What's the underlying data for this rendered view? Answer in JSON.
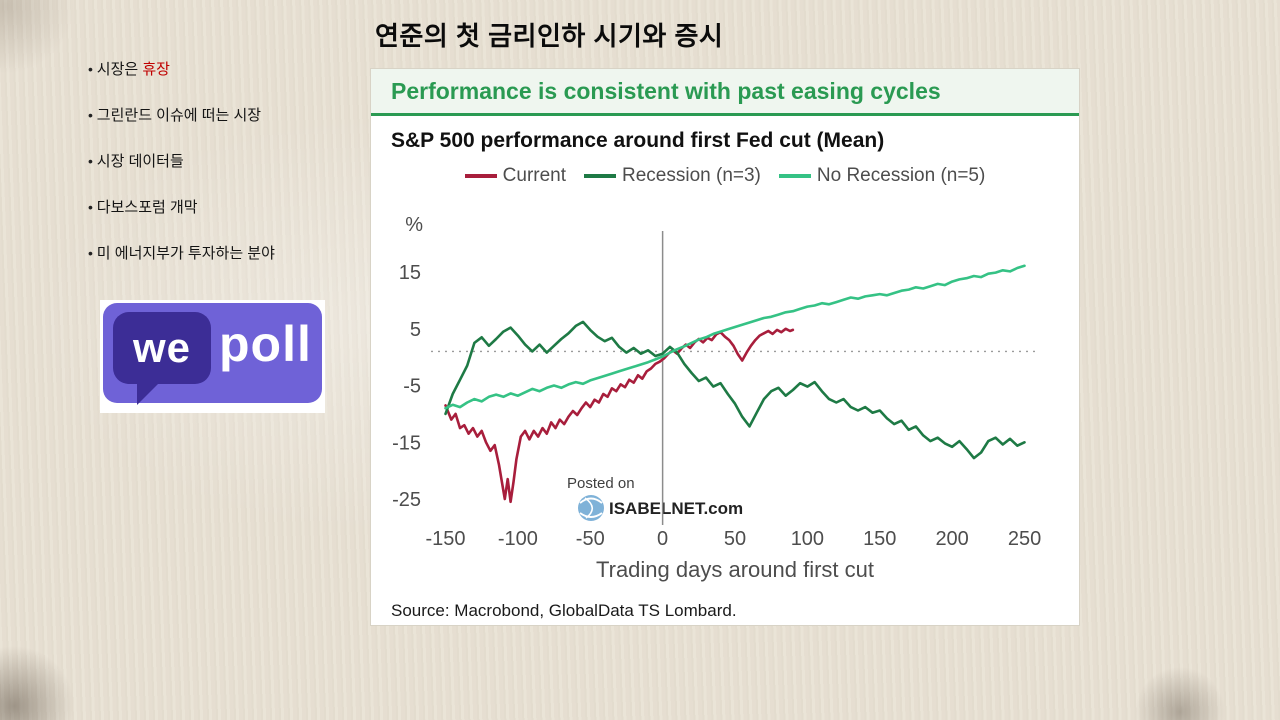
{
  "page": {
    "title": "연준의 첫 금리인하 시기와 증시"
  },
  "sidebar": {
    "items": [
      {
        "text": "시장은 ",
        "highlight": "휴장"
      },
      {
        "text": "그린란드 이슈에 떠는 시장",
        "highlight": ""
      },
      {
        "text": "시장 데이터들",
        "highlight": ""
      },
      {
        "text": "다보스포럼 개막",
        "highlight": ""
      },
      {
        "text": "미 에너지부가 투자하는 분야",
        "highlight": ""
      }
    ]
  },
  "logo": {
    "we": "we",
    "poll": "poll"
  },
  "chart_panel": {
    "header": "Performance is consistent with past easing cycles",
    "watermark_line1": "Posted on",
    "watermark_line2": "ISABELNET.com",
    "source": "Source: Macrobond, GlobalData TS Lombard."
  },
  "colors": {
    "header_green": "#2a9a52",
    "highlight_red": "#c00000",
    "logo_purple": "#6f62d7",
    "logo_dark_purple": "#3c2d96",
    "current_red": "#a81e3c",
    "recession_green": "#1e7a45",
    "no_recession_green": "#35c285"
  },
  "chart_data": {
    "type": "line",
    "title": "S&P 500 performance around first Fed cut (Mean)",
    "ylabel": "%",
    "xlabel": "Trading days around first cut",
    "x_ticks": [
      -150,
      -100,
      -50,
      0,
      50,
      100,
      150,
      200,
      250
    ],
    "y_ticks": [
      15,
      5,
      -5,
      -15,
      -25
    ],
    "xlim": [
      -160,
      260
    ],
    "ylim": [
      -28,
      20
    ],
    "grid": false,
    "legend_position": "top",
    "reference_lines": {
      "vertical_x": 0,
      "dotted_y": 1
    },
    "series": [
      {
        "name": "Current",
        "color": "#a81e3c",
        "points": [
          [
            -150,
            -8.5
          ],
          [
            -146,
            -11
          ],
          [
            -143,
            -10
          ],
          [
            -140,
            -12.5
          ],
          [
            -137,
            -12
          ],
          [
            -134,
            -13.5
          ],
          [
            -131,
            -12.5
          ],
          [
            -128,
            -14
          ],
          [
            -125,
            -13
          ],
          [
            -122,
            -15
          ],
          [
            -119,
            -16.5
          ],
          [
            -116,
            -15.5
          ],
          [
            -113,
            -19
          ],
          [
            -111,
            -22
          ],
          [
            -109,
            -25
          ],
          [
            -107,
            -21.5
          ],
          [
            -105,
            -25.5
          ],
          [
            -103,
            -22
          ],
          [
            -101,
            -18
          ],
          [
            -98,
            -14
          ],
          [
            -95,
            -13
          ],
          [
            -92,
            -14.5
          ],
          [
            -89,
            -13
          ],
          [
            -86,
            -14
          ],
          [
            -83,
            -12.5
          ],
          [
            -80,
            -13.5
          ],
          [
            -77,
            -11.5
          ],
          [
            -74,
            -12.5
          ],
          [
            -71,
            -11
          ],
          [
            -68,
            -11.8
          ],
          [
            -65,
            -10.5
          ],
          [
            -62,
            -9.5
          ],
          [
            -59,
            -10.2
          ],
          [
            -56,
            -9
          ],
          [
            -53,
            -8
          ],
          [
            -50,
            -8.8
          ],
          [
            -47,
            -7.5
          ],
          [
            -44,
            -8
          ],
          [
            -41,
            -6.5
          ],
          [
            -38,
            -7
          ],
          [
            -35,
            -5.5
          ],
          [
            -32,
            -6
          ],
          [
            -29,
            -4.8
          ],
          [
            -26,
            -5.3
          ],
          [
            -23,
            -4
          ],
          [
            -20,
            -4.5
          ],
          [
            -17,
            -3.2
          ],
          [
            -14,
            -3.8
          ],
          [
            -11,
            -2.5
          ],
          [
            -8,
            -2
          ],
          [
            -5,
            -1.2
          ],
          [
            -2,
            -0.8
          ],
          [
            1,
            -0.2
          ],
          [
            4,
            0.6
          ],
          [
            7,
            1.2
          ],
          [
            10,
            0.6
          ],
          [
            13,
            1.5
          ],
          [
            16,
            2.2
          ],
          [
            19,
            1.6
          ],
          [
            22,
            2.6
          ],
          [
            25,
            3.2
          ],
          [
            28,
            2.6
          ],
          [
            31,
            3.4
          ],
          [
            34,
            3
          ],
          [
            37,
            4
          ],
          [
            40,
            4.4
          ],
          [
            43,
            3.6
          ],
          [
            46,
            3
          ],
          [
            49,
            2
          ],
          [
            52,
            0.5
          ],
          [
            55,
            -0.6
          ],
          [
            58,
            0.8
          ],
          [
            61,
            2
          ],
          [
            64,
            3
          ],
          [
            67,
            3.8
          ],
          [
            70,
            4.2
          ],
          [
            73,
            4.6
          ],
          [
            76,
            4.1
          ],
          [
            79,
            4.8
          ],
          [
            82,
            4.4
          ],
          [
            85,
            5
          ],
          [
            88,
            4.6
          ],
          [
            90,
            4.8
          ]
        ]
      },
      {
        "name": "Recession (n=3)",
        "color": "#1e7a45",
        "points": [
          [
            -150,
            -10
          ],
          [
            -145,
            -6.5
          ],
          [
            -140,
            -4
          ],
          [
            -135,
            -1.5
          ],
          [
            -130,
            2.5
          ],
          [
            -125,
            3.5
          ],
          [
            -120,
            2
          ],
          [
            -115,
            3.2
          ],
          [
            -110,
            4.5
          ],
          [
            -105,
            5.2
          ],
          [
            -100,
            3.8
          ],
          [
            -95,
            2.2
          ],
          [
            -90,
            1
          ],
          [
            -85,
            2.2
          ],
          [
            -80,
            0.8
          ],
          [
            -75,
            2
          ],
          [
            -70,
            3.2
          ],
          [
            -65,
            4.2
          ],
          [
            -60,
            5.5
          ],
          [
            -55,
            6.2
          ],
          [
            -50,
            4.8
          ],
          [
            -45,
            3.6
          ],
          [
            -40,
            2.8
          ],
          [
            -35,
            3.4
          ],
          [
            -30,
            1.8
          ],
          [
            -25,
            0.8
          ],
          [
            -20,
            1.6
          ],
          [
            -15,
            0.6
          ],
          [
            -10,
            1.2
          ],
          [
            -5,
            0.2
          ],
          [
            0,
            0.6
          ],
          [
            5,
            1.8
          ],
          [
            10,
            0.8
          ],
          [
            15,
            -1.2
          ],
          [
            20,
            -2.8
          ],
          [
            25,
            -4.2
          ],
          [
            30,
            -3.6
          ],
          [
            35,
            -5.2
          ],
          [
            40,
            -4.6
          ],
          [
            45,
            -6.5
          ],
          [
            50,
            -8.2
          ],
          [
            55,
            -10.5
          ],
          [
            60,
            -12.2
          ],
          [
            65,
            -9.8
          ],
          [
            70,
            -7.4
          ],
          [
            75,
            -6
          ],
          [
            80,
            -5.4
          ],
          [
            85,
            -6.8
          ],
          [
            90,
            -5.8
          ],
          [
            95,
            -4.6
          ],
          [
            100,
            -5.2
          ],
          [
            105,
            -4.4
          ],
          [
            110,
            -6
          ],
          [
            115,
            -7.4
          ],
          [
            120,
            -8
          ],
          [
            125,
            -7.4
          ],
          [
            130,
            -8.8
          ],
          [
            135,
            -9.4
          ],
          [
            140,
            -8.8
          ],
          [
            145,
            -9.8
          ],
          [
            150,
            -9.4
          ],
          [
            155,
            -10.8
          ],
          [
            160,
            -11.8
          ],
          [
            165,
            -11.2
          ],
          [
            170,
            -12.8
          ],
          [
            175,
            -12.2
          ],
          [
            180,
            -13.8
          ],
          [
            185,
            -14.8
          ],
          [
            190,
            -14.2
          ],
          [
            195,
            -15.2
          ],
          [
            200,
            -15.8
          ],
          [
            205,
            -14.8
          ],
          [
            210,
            -16.2
          ],
          [
            215,
            -17.8
          ],
          [
            220,
            -16.8
          ],
          [
            225,
            -14.8
          ],
          [
            230,
            -14.2
          ],
          [
            235,
            -15.4
          ],
          [
            240,
            -14.4
          ],
          [
            245,
            -15.6
          ],
          [
            250,
            -15
          ]
        ]
      },
      {
        "name": "No Recession (n=5)",
        "color": "#35c285",
        "points": [
          [
            -150,
            -9
          ],
          [
            -145,
            -8.4
          ],
          [
            -140,
            -8.8
          ],
          [
            -135,
            -8
          ],
          [
            -130,
            -7.4
          ],
          [
            -125,
            -7.8
          ],
          [
            -120,
            -7
          ],
          [
            -115,
            -6.6
          ],
          [
            -110,
            -7
          ],
          [
            -105,
            -6.4
          ],
          [
            -100,
            -6.8
          ],
          [
            -95,
            -6.2
          ],
          [
            -90,
            -5.6
          ],
          [
            -85,
            -6
          ],
          [
            -80,
            -5.4
          ],
          [
            -75,
            -5
          ],
          [
            -70,
            -5.4
          ],
          [
            -65,
            -4.8
          ],
          [
            -60,
            -4.4
          ],
          [
            -55,
            -4.7
          ],
          [
            -50,
            -4.1
          ],
          [
            -45,
            -3.7
          ],
          [
            -40,
            -3.3
          ],
          [
            -35,
            -2.9
          ],
          [
            -30,
            -2.5
          ],
          [
            -25,
            -2.1
          ],
          [
            -20,
            -1.7
          ],
          [
            -15,
            -1.3
          ],
          [
            -10,
            -0.9
          ],
          [
            -5,
            -0.4
          ],
          [
            0,
            0.1
          ],
          [
            5,
            0.8
          ],
          [
            10,
            1.4
          ],
          [
            15,
            1.9
          ],
          [
            20,
            2.5
          ],
          [
            25,
            3.1
          ],
          [
            30,
            3.5
          ],
          [
            35,
            4.1
          ],
          [
            40,
            4.5
          ],
          [
            45,
            4.9
          ],
          [
            50,
            5.3
          ],
          [
            55,
            5.7
          ],
          [
            60,
            6.1
          ],
          [
            65,
            6.5
          ],
          [
            70,
            6.9
          ],
          [
            75,
            7.1
          ],
          [
            80,
            7.5
          ],
          [
            85,
            7.9
          ],
          [
            90,
            8.1
          ],
          [
            95,
            8.5
          ],
          [
            100,
            8.9
          ],
          [
            105,
            9.1
          ],
          [
            110,
            9.5
          ],
          [
            115,
            9.3
          ],
          [
            120,
            9.7
          ],
          [
            125,
            10.1
          ],
          [
            130,
            10.5
          ],
          [
            135,
            10.3
          ],
          [
            140,
            10.7
          ],
          [
            145,
            10.9
          ],
          [
            150,
            11.1
          ],
          [
            155,
            10.9
          ],
          [
            160,
            11.3
          ],
          [
            165,
            11.7
          ],
          [
            170,
            11.9
          ],
          [
            175,
            12.3
          ],
          [
            180,
            12.1
          ],
          [
            185,
            12.5
          ],
          [
            190,
            12.9
          ],
          [
            195,
            12.7
          ],
          [
            200,
            13.3
          ],
          [
            205,
            13.7
          ],
          [
            210,
            13.9
          ],
          [
            215,
            14.3
          ],
          [
            220,
            14.1
          ],
          [
            225,
            14.7
          ],
          [
            230,
            14.9
          ],
          [
            235,
            15.3
          ],
          [
            240,
            15.1
          ],
          [
            245,
            15.7
          ],
          [
            250,
            16.1
          ]
        ]
      }
    ]
  }
}
